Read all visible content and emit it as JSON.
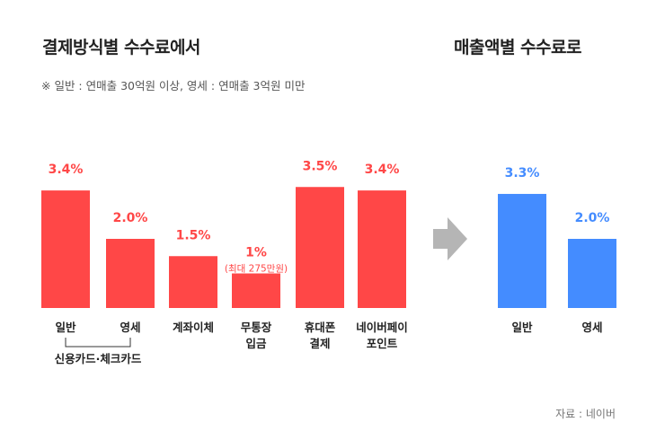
{
  "titles": {
    "left": "결제방식별 수수료에서",
    "right": "매출액별 수수료로"
  },
  "note": "※ 일반 : 연매출 30억원 이상, 영세 : 연매출 3억원 미만",
  "source": "자료 : 네이버",
  "colors": {
    "before": "#ff4747",
    "after": "#448cff",
    "arrow": "#b5b5b5"
  },
  "chart_data": [
    {
      "type": "bar",
      "title": "결제방식별 수수료에서",
      "categories": [
        [
          "일반"
        ],
        [
          "영세"
        ],
        [
          "계좌이체"
        ],
        [
          "무통장",
          "입금"
        ],
        [
          "휴대폰",
          "결제"
        ],
        [
          "네이버페이",
          "포인트"
        ]
      ],
      "values": [
        3.4,
        2.0,
        1.5,
        1,
        3.5,
        3.4
      ],
      "value_labels": [
        "3.4%",
        "2.0%",
        "1.5%",
        "1%",
        "3.5%",
        "3.4%"
      ],
      "annotations": [
        {
          "category_index": 3,
          "text": "(최대 275만원)"
        }
      ],
      "group_label": "신용카드·체크카드",
      "color": "#ff4747"
    },
    {
      "type": "bar",
      "title": "매출액별 수수료로",
      "categories": [
        [
          "일반"
        ],
        [
          "영세"
        ]
      ],
      "values": [
        3.3,
        2.0
      ],
      "value_labels": [
        "3.3%",
        "2.0%"
      ],
      "color": "#448cff"
    }
  ]
}
